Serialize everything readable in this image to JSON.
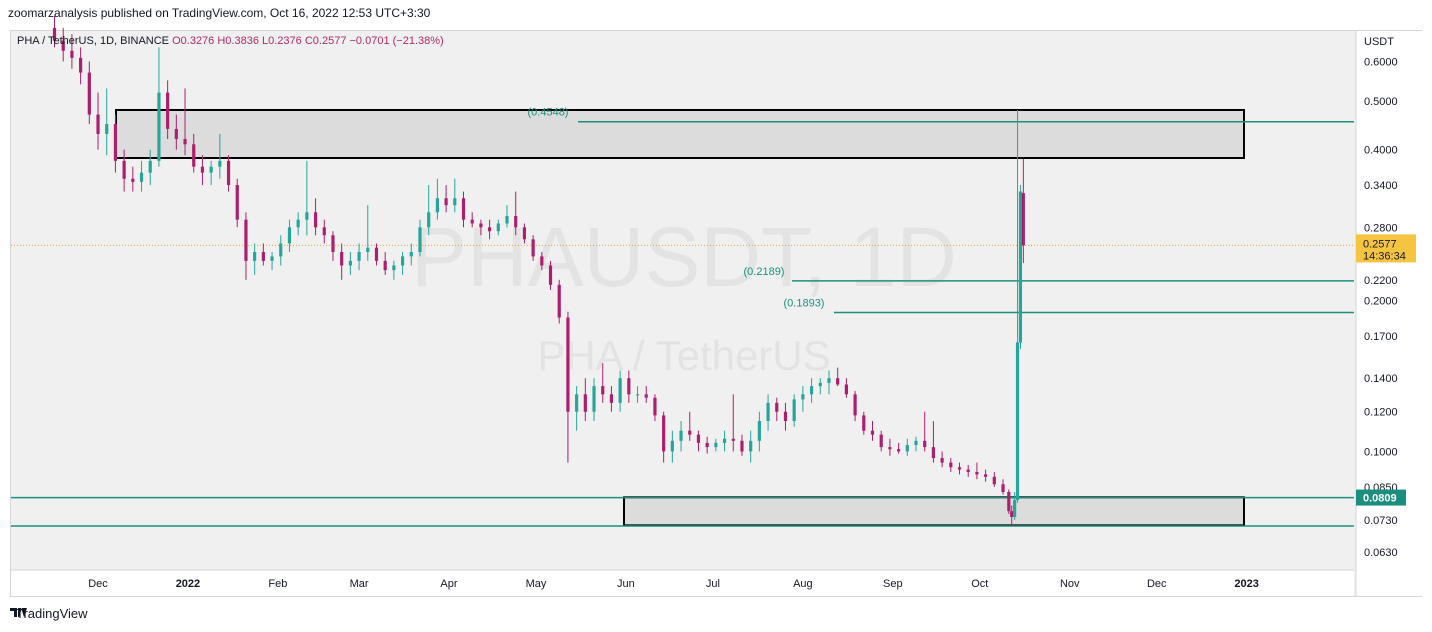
{
  "caption": "zoomarzanalysis published on TradingView.com, Oct 16, 2022 12:53 UTC+3:30",
  "symbol": {
    "text": "PHA / TetherUS, 1D, BINANCE",
    "o": "O0.3276",
    "h": "H0.3836",
    "l": "L0.2376",
    "c": "C0.2577",
    "chg": "−0.0701 (−21.38%)"
  },
  "watermark": {
    "line1": "PHAUSDT, 1D",
    "line2": "PHA / TetherUS"
  },
  "footer": {
    "brand": "TradingView"
  },
  "colors": {
    "up": "#26a69a",
    "down": "#ab1f6c",
    "level": "#1b8f7f",
    "zone_fill": "#dcdcdc",
    "zone_stroke": "#000000",
    "price_tag": "#f5c542",
    "level_tag": "#1b8f7f"
  },
  "chart_data": {
    "type": "candlestick",
    "scale": "log",
    "y_axis_label": "USDT",
    "ylim": [
      0.058,
      0.69
    ],
    "y_ticks": [
      "0.6000",
      "0.5000",
      "0.4000",
      "0.3400",
      "0.2800",
      "0.2200",
      "0.2000",
      "0.1700",
      "0.1400",
      "0.1200",
      "0.1000",
      "0.0850",
      "0.0730",
      "0.0630"
    ],
    "x_ticks": [
      "Dec",
      "2022",
      "Feb",
      "Mar",
      "Apr",
      "May",
      "Jun",
      "Jul",
      "Aug",
      "Sep",
      "Oct",
      "Nov",
      "Dec",
      "2023"
    ],
    "last_price": {
      "value": "0.2577",
      "countdown": "14:36:34"
    },
    "support_tag": "0.0809",
    "levels": [
      {
        "label": "(0.4548)",
        "value": 0.4548
      },
      {
        "label": "(0.2189)",
        "value": 0.2189
      },
      {
        "label": "(0.1893)",
        "value": 0.1893
      },
      {
        "label": "",
        "value": 0.0809
      },
      {
        "label": "",
        "value": 0.071
      }
    ],
    "zones": [
      {
        "top": 0.48,
        "bottom": 0.385
      },
      {
        "top": 0.081,
        "bottom": 0.0712
      }
    ],
    "series": [
      {
        "date": "2021-11-16",
        "o": 0.7,
        "h": 0.74,
        "l": 0.64,
        "c": 0.66
      },
      {
        "date": "2021-11-19",
        "o": 0.66,
        "h": 0.7,
        "l": 0.6,
        "c": 0.63
      },
      {
        "date": "2021-11-22",
        "o": 0.63,
        "h": 0.68,
        "l": 0.58,
        "c": 0.61
      },
      {
        "date": "2021-11-25",
        "o": 0.61,
        "h": 0.64,
        "l": 0.54,
        "c": 0.57
      },
      {
        "date": "2021-11-28",
        "o": 0.57,
        "h": 0.6,
        "l": 0.45,
        "c": 0.47
      },
      {
        "date": "2021-12-01",
        "o": 0.47,
        "h": 0.52,
        "l": 0.4,
        "c": 0.43
      },
      {
        "date": "2021-12-04",
        "o": 0.43,
        "h": 0.53,
        "l": 0.39,
        "c": 0.45
      },
      {
        "date": "2021-12-07",
        "o": 0.45,
        "h": 0.47,
        "l": 0.36,
        "c": 0.38
      },
      {
        "date": "2021-12-10",
        "o": 0.38,
        "h": 0.4,
        "l": 0.33,
        "c": 0.35
      },
      {
        "date": "2021-12-13",
        "o": 0.35,
        "h": 0.37,
        "l": 0.33,
        "c": 0.345
      },
      {
        "date": "2021-12-16",
        "o": 0.345,
        "h": 0.38,
        "l": 0.33,
        "c": 0.36
      },
      {
        "date": "2021-12-19",
        "o": 0.36,
        "h": 0.4,
        "l": 0.34,
        "c": 0.38
      },
      {
        "date": "2021-12-22",
        "o": 0.38,
        "h": 0.64,
        "l": 0.37,
        "c": 0.52
      },
      {
        "date": "2021-12-25",
        "o": 0.52,
        "h": 0.55,
        "l": 0.42,
        "c": 0.44
      },
      {
        "date": "2021-12-28",
        "o": 0.44,
        "h": 0.47,
        "l": 0.4,
        "c": 0.42
      },
      {
        "date": "2021-12-31",
        "o": 0.42,
        "h": 0.53,
        "l": 0.39,
        "c": 0.41
      },
      {
        "date": "2022-01-03",
        "o": 0.41,
        "h": 0.43,
        "l": 0.36,
        "c": 0.37
      },
      {
        "date": "2022-01-06",
        "o": 0.37,
        "h": 0.39,
        "l": 0.34,
        "c": 0.36
      },
      {
        "date": "2022-01-09",
        "o": 0.36,
        "h": 0.38,
        "l": 0.34,
        "c": 0.37
      },
      {
        "date": "2022-01-12",
        "o": 0.37,
        "h": 0.43,
        "l": 0.35,
        "c": 0.38
      },
      {
        "date": "2022-01-15",
        "o": 0.38,
        "h": 0.39,
        "l": 0.33,
        "c": 0.34
      },
      {
        "date": "2022-01-18",
        "o": 0.34,
        "h": 0.35,
        "l": 0.28,
        "c": 0.29
      },
      {
        "date": "2022-01-21",
        "o": 0.29,
        "h": 0.3,
        "l": 0.22,
        "c": 0.24
      },
      {
        "date": "2022-01-24",
        "o": 0.24,
        "h": 0.26,
        "l": 0.225,
        "c": 0.25
      },
      {
        "date": "2022-01-27",
        "o": 0.25,
        "h": 0.26,
        "l": 0.235,
        "c": 0.24
      },
      {
        "date": "2022-01-30",
        "o": 0.24,
        "h": 0.25,
        "l": 0.23,
        "c": 0.245
      },
      {
        "date": "2022-02-02",
        "o": 0.245,
        "h": 0.27,
        "l": 0.235,
        "c": 0.26
      },
      {
        "date": "2022-02-05",
        "o": 0.26,
        "h": 0.29,
        "l": 0.25,
        "c": 0.28
      },
      {
        "date": "2022-02-08",
        "o": 0.28,
        "h": 0.3,
        "l": 0.27,
        "c": 0.29
      },
      {
        "date": "2022-02-11",
        "o": 0.29,
        "h": 0.38,
        "l": 0.27,
        "c": 0.3
      },
      {
        "date": "2022-02-14",
        "o": 0.3,
        "h": 0.32,
        "l": 0.27,
        "c": 0.28
      },
      {
        "date": "2022-02-17",
        "o": 0.28,
        "h": 0.29,
        "l": 0.26,
        "c": 0.27
      },
      {
        "date": "2022-02-20",
        "o": 0.27,
        "h": 0.275,
        "l": 0.24,
        "c": 0.25
      },
      {
        "date": "2022-02-23",
        "o": 0.25,
        "h": 0.26,
        "l": 0.22,
        "c": 0.235
      },
      {
        "date": "2022-02-26",
        "o": 0.235,
        "h": 0.25,
        "l": 0.225,
        "c": 0.24
      },
      {
        "date": "2022-03-01",
        "o": 0.24,
        "h": 0.26,
        "l": 0.23,
        "c": 0.25
      },
      {
        "date": "2022-03-04",
        "o": 0.25,
        "h": 0.31,
        "l": 0.24,
        "c": 0.255
      },
      {
        "date": "2022-03-07",
        "o": 0.255,
        "h": 0.26,
        "l": 0.235,
        "c": 0.24
      },
      {
        "date": "2022-03-10",
        "o": 0.24,
        "h": 0.25,
        "l": 0.225,
        "c": 0.23
      },
      {
        "date": "2022-03-13",
        "o": 0.23,
        "h": 0.24,
        "l": 0.22,
        "c": 0.235
      },
      {
        "date": "2022-03-16",
        "o": 0.235,
        "h": 0.25,
        "l": 0.225,
        "c": 0.245
      },
      {
        "date": "2022-03-19",
        "o": 0.245,
        "h": 0.26,
        "l": 0.235,
        "c": 0.25
      },
      {
        "date": "2022-03-22",
        "o": 0.25,
        "h": 0.29,
        "l": 0.245,
        "c": 0.28
      },
      {
        "date": "2022-03-25",
        "o": 0.28,
        "h": 0.34,
        "l": 0.27,
        "c": 0.3
      },
      {
        "date": "2022-03-28",
        "o": 0.3,
        "h": 0.35,
        "l": 0.29,
        "c": 0.32
      },
      {
        "date": "2022-03-31",
        "o": 0.32,
        "h": 0.34,
        "l": 0.3,
        "c": 0.31
      },
      {
        "date": "2022-04-03",
        "o": 0.31,
        "h": 0.35,
        "l": 0.3,
        "c": 0.32
      },
      {
        "date": "2022-04-06",
        "o": 0.32,
        "h": 0.33,
        "l": 0.28,
        "c": 0.29
      },
      {
        "date": "2022-04-09",
        "o": 0.29,
        "h": 0.3,
        "l": 0.28,
        "c": 0.285
      },
      {
        "date": "2022-04-12",
        "o": 0.285,
        "h": 0.29,
        "l": 0.27,
        "c": 0.28
      },
      {
        "date": "2022-04-15",
        "o": 0.28,
        "h": 0.29,
        "l": 0.265,
        "c": 0.275
      },
      {
        "date": "2022-04-18",
        "o": 0.275,
        "h": 0.29,
        "l": 0.27,
        "c": 0.285
      },
      {
        "date": "2022-04-21",
        "o": 0.285,
        "h": 0.31,
        "l": 0.28,
        "c": 0.295
      },
      {
        "date": "2022-04-24",
        "o": 0.295,
        "h": 0.33,
        "l": 0.27,
        "c": 0.28
      },
      {
        "date": "2022-04-27",
        "o": 0.28,
        "h": 0.285,
        "l": 0.26,
        "c": 0.265
      },
      {
        "date": "2022-04-30",
        "o": 0.265,
        "h": 0.27,
        "l": 0.24,
        "c": 0.245
      },
      {
        "date": "2022-05-03",
        "o": 0.245,
        "h": 0.25,
        "l": 0.23,
        "c": 0.235
      },
      {
        "date": "2022-05-06",
        "o": 0.235,
        "h": 0.24,
        "l": 0.21,
        "c": 0.215
      },
      {
        "date": "2022-05-09",
        "o": 0.215,
        "h": 0.22,
        "l": 0.18,
        "c": 0.185
      },
      {
        "date": "2022-05-12",
        "o": 0.185,
        "h": 0.19,
        "l": 0.095,
        "c": 0.12
      },
      {
        "date": "2022-05-15",
        "o": 0.12,
        "h": 0.135,
        "l": 0.11,
        "c": 0.13
      },
      {
        "date": "2022-05-18",
        "o": 0.13,
        "h": 0.14,
        "l": 0.115,
        "c": 0.12
      },
      {
        "date": "2022-05-21",
        "o": 0.12,
        "h": 0.14,
        "l": 0.115,
        "c": 0.135
      },
      {
        "date": "2022-05-24",
        "o": 0.135,
        "h": 0.15,
        "l": 0.125,
        "c": 0.13
      },
      {
        "date": "2022-05-27",
        "o": 0.13,
        "h": 0.135,
        "l": 0.12,
        "c": 0.125
      },
      {
        "date": "2022-05-30",
        "o": 0.125,
        "h": 0.145,
        "l": 0.12,
        "c": 0.14
      },
      {
        "date": "2022-06-02",
        "o": 0.14,
        "h": 0.145,
        "l": 0.125,
        "c": 0.13
      },
      {
        "date": "2022-06-05",
        "o": 0.13,
        "h": 0.135,
        "l": 0.125,
        "c": 0.13
      },
      {
        "date": "2022-06-08",
        "o": 0.13,
        "h": 0.135,
        "l": 0.125,
        "c": 0.128
      },
      {
        "date": "2022-06-11",
        "o": 0.128,
        "h": 0.13,
        "l": 0.115,
        "c": 0.118
      },
      {
        "date": "2022-06-14",
        "o": 0.118,
        "h": 0.12,
        "l": 0.095,
        "c": 0.1
      },
      {
        "date": "2022-06-17",
        "o": 0.1,
        "h": 0.11,
        "l": 0.095,
        "c": 0.105
      },
      {
        "date": "2022-06-20",
        "o": 0.105,
        "h": 0.115,
        "l": 0.1,
        "c": 0.11
      },
      {
        "date": "2022-06-23",
        "o": 0.11,
        "h": 0.12,
        "l": 0.105,
        "c": 0.108
      },
      {
        "date": "2022-06-26",
        "o": 0.108,
        "h": 0.11,
        "l": 0.1,
        "c": 0.104
      },
      {
        "date": "2022-06-29",
        "o": 0.104,
        "h": 0.107,
        "l": 0.099,
        "c": 0.102
      },
      {
        "date": "2022-07-02",
        "o": 0.102,
        "h": 0.106,
        "l": 0.1,
        "c": 0.104
      },
      {
        "date": "2022-07-05",
        "o": 0.104,
        "h": 0.11,
        "l": 0.1,
        "c": 0.106
      },
      {
        "date": "2022-07-08",
        "o": 0.106,
        "h": 0.13,
        "l": 0.1,
        "c": 0.105
      },
      {
        "date": "2022-07-11",
        "o": 0.105,
        "h": 0.108,
        "l": 0.098,
        "c": 0.1
      },
      {
        "date": "2022-07-14",
        "o": 0.1,
        "h": 0.11,
        "l": 0.095,
        "c": 0.105
      },
      {
        "date": "2022-07-17",
        "o": 0.105,
        "h": 0.12,
        "l": 0.1,
        "c": 0.115
      },
      {
        "date": "2022-07-20",
        "o": 0.115,
        "h": 0.13,
        "l": 0.11,
        "c": 0.125
      },
      {
        "date": "2022-07-23",
        "o": 0.125,
        "h": 0.128,
        "l": 0.115,
        "c": 0.12
      },
      {
        "date": "2022-07-26",
        "o": 0.12,
        "h": 0.125,
        "l": 0.11,
        "c": 0.115
      },
      {
        "date": "2022-07-29",
        "o": 0.115,
        "h": 0.13,
        "l": 0.112,
        "c": 0.127
      },
      {
        "date": "2022-08-01",
        "o": 0.127,
        "h": 0.135,
        "l": 0.12,
        "c": 0.13
      },
      {
        "date": "2022-08-04",
        "o": 0.13,
        "h": 0.14,
        "l": 0.125,
        "c": 0.135
      },
      {
        "date": "2022-08-07",
        "o": 0.135,
        "h": 0.14,
        "l": 0.13,
        "c": 0.137
      },
      {
        "date": "2022-08-10",
        "o": 0.137,
        "h": 0.145,
        "l": 0.13,
        "c": 0.14
      },
      {
        "date": "2022-08-13",
        "o": 0.14,
        "h": 0.147,
        "l": 0.135,
        "c": 0.136
      },
      {
        "date": "2022-08-16",
        "o": 0.136,
        "h": 0.14,
        "l": 0.128,
        "c": 0.13
      },
      {
        "date": "2022-08-19",
        "o": 0.13,
        "h": 0.132,
        "l": 0.115,
        "c": 0.118
      },
      {
        "date": "2022-08-22",
        "o": 0.118,
        "h": 0.12,
        "l": 0.108,
        "c": 0.11
      },
      {
        "date": "2022-08-25",
        "o": 0.11,
        "h": 0.115,
        "l": 0.105,
        "c": 0.108
      },
      {
        "date": "2022-08-28",
        "o": 0.108,
        "h": 0.11,
        "l": 0.1,
        "c": 0.102
      },
      {
        "date": "2022-08-31",
        "o": 0.102,
        "h": 0.106,
        "l": 0.098,
        "c": 0.101
      },
      {
        "date": "2022-09-03",
        "o": 0.101,
        "h": 0.104,
        "l": 0.099,
        "c": 0.1
      },
      {
        "date": "2022-09-06",
        "o": 0.1,
        "h": 0.106,
        "l": 0.098,
        "c": 0.103
      },
      {
        "date": "2022-09-09",
        "o": 0.103,
        "h": 0.107,
        "l": 0.1,
        "c": 0.105
      },
      {
        "date": "2022-09-12",
        "o": 0.105,
        "h": 0.12,
        "l": 0.1,
        "c": 0.102
      },
      {
        "date": "2022-09-15",
        "o": 0.102,
        "h": 0.115,
        "l": 0.095,
        "c": 0.097
      },
      {
        "date": "2022-09-18",
        "o": 0.097,
        "h": 0.1,
        "l": 0.093,
        "c": 0.095
      },
      {
        "date": "2022-09-21",
        "o": 0.095,
        "h": 0.097,
        "l": 0.091,
        "c": 0.093
      },
      {
        "date": "2022-09-24",
        "o": 0.093,
        "h": 0.095,
        "l": 0.09,
        "c": 0.092
      },
      {
        "date": "2022-09-27",
        "o": 0.092,
        "h": 0.094,
        "l": 0.089,
        "c": 0.091
      },
      {
        "date": "2022-09-30",
        "o": 0.091,
        "h": 0.095,
        "l": 0.088,
        "c": 0.09
      },
      {
        "date": "2022-10-03",
        "o": 0.09,
        "h": 0.092,
        "l": 0.087,
        "c": 0.089
      },
      {
        "date": "2022-10-06",
        "o": 0.089,
        "h": 0.091,
        "l": 0.085,
        "c": 0.086
      },
      {
        "date": "2022-10-09",
        "o": 0.086,
        "h": 0.088,
        "l": 0.082,
        "c": 0.083
      },
      {
        "date": "2022-10-11",
        "o": 0.083,
        "h": 0.084,
        "l": 0.075,
        "c": 0.076
      },
      {
        "date": "2022-10-12",
        "o": 0.076,
        "h": 0.078,
        "l": 0.071,
        "c": 0.074
      },
      {
        "date": "2022-10-13",
        "o": 0.074,
        "h": 0.083,
        "l": 0.073,
        "c": 0.08
      },
      {
        "date": "2022-10-14",
        "o": 0.08,
        "h": 0.48,
        "l": 0.079,
        "c": 0.165
      },
      {
        "date": "2022-10-15",
        "o": 0.165,
        "h": 0.34,
        "l": 0.16,
        "c": 0.33
      },
      {
        "date": "2022-10-16",
        "o": 0.3276,
        "h": 0.3836,
        "l": 0.2376,
        "c": 0.2577
      }
    ]
  }
}
